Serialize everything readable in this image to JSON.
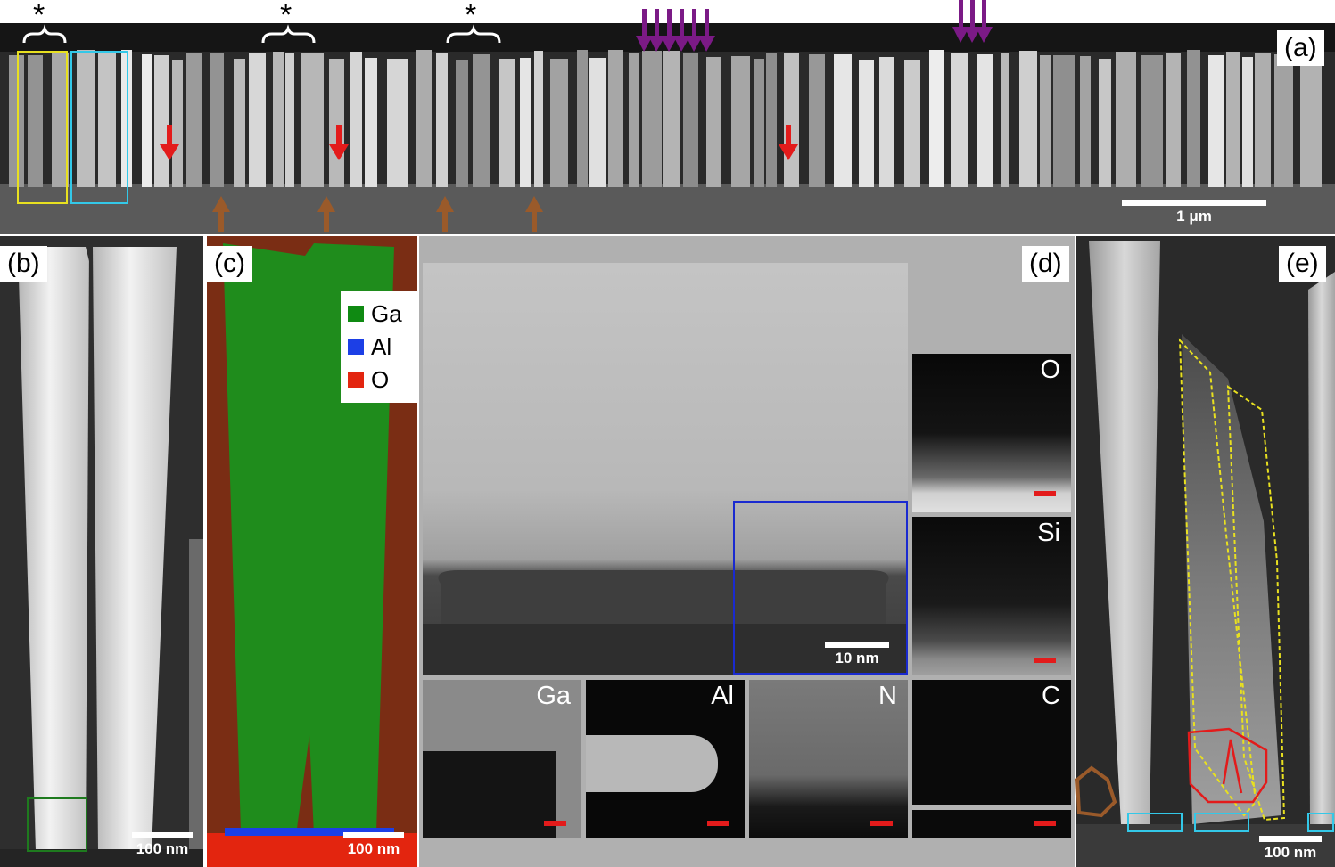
{
  "panels": {
    "a": {
      "label": "(a)",
      "scalebar": "1 μm"
    },
    "b": {
      "label": "(b)",
      "scalebar": "100 nm"
    },
    "c": {
      "label": "(c)",
      "scalebar": "100 nm",
      "legend": [
        {
          "name": "Ga",
          "color": "#0f8a12"
        },
        {
          "name": "Al",
          "color": "#1c3fe6"
        },
        {
          "name": "O",
          "color": "#e3250f"
        }
      ]
    },
    "d": {
      "label": "(d)",
      "scalebar": "10 nm",
      "maps": [
        "O",
        "Si",
        "Ga",
        "Al",
        "N",
        "C"
      ]
    },
    "e": {
      "label": "(e)",
      "scalebar": "100 nm"
    }
  },
  "annotations": {
    "asterisk": "*"
  },
  "colors": {
    "red_arrow": "#e31b1b",
    "brown_arrow": "#9a5a2a",
    "purple_arrow": "#7b1a86",
    "yellow_box": "#e8e020",
    "cyan_box": "#33c8e8",
    "green_box": "#1e7a1e",
    "blue_box": "#1a2ad0"
  }
}
